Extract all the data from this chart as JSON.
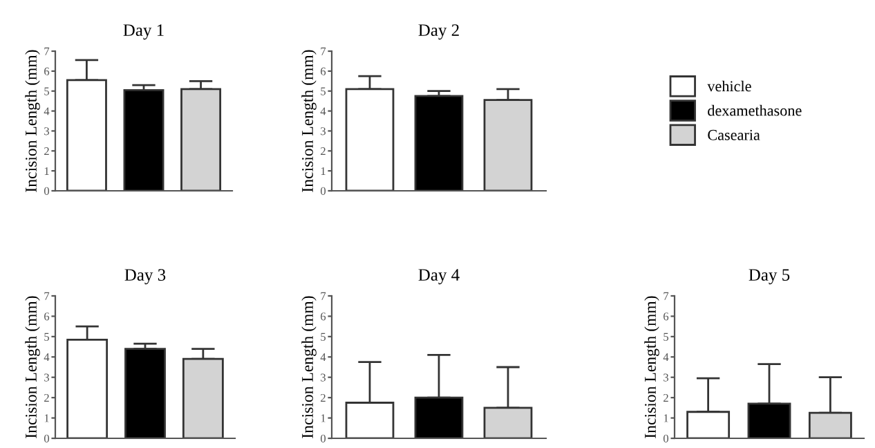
{
  "chart_data": [
    {
      "type": "bar",
      "title": "Day 1",
      "ylabel": "Incision Length (mm)",
      "categories": [
        null,
        null,
        null
      ],
      "ylim": [
        0,
        7
      ],
      "yticks": [
        0,
        1,
        2,
        3,
        4,
        5,
        6,
        7
      ],
      "grid": false,
      "legend": "right",
      "series": [
        {
          "name": "vehicle",
          "color": "#ffffff",
          "values": [
            5.55,
            null,
            null
          ],
          "errors": [
            [
              5.55,
              6.55
            ],
            null,
            null
          ]
        },
        {
          "name": "dexamethasone",
          "color": "#000000",
          "values": [
            null,
            5.05,
            null
          ],
          "errors": [
            null,
            [
              5.05,
              5.3
            ],
            null
          ]
        },
        {
          "name": "Casearia",
          "color": "#d3d3d3",
          "values": [
            null,
            null,
            5.1
          ],
          "errors": [
            null,
            null,
            [
              5.1,
              5.5
            ]
          ]
        }
      ]
    },
    {
      "type": "bar",
      "title": "Day 2",
      "ylabel": "Incision Length (mm)",
      "categories": [
        null,
        null,
        null
      ],
      "ylim": [
        0,
        7
      ],
      "yticks": [
        0,
        1,
        2,
        3,
        4,
        5,
        6,
        7
      ],
      "grid": false,
      "series": [
        {
          "color": "#ffffff",
          "values": [
            5.1,
            null,
            null
          ],
          "errors": [
            [
              5.1,
              5.75
            ],
            null,
            null
          ]
        },
        {
          "color": "#000000",
          "values": [
            null,
            4.75,
            null
          ],
          "errors": [
            null,
            [
              4.75,
              5.0
            ],
            null
          ]
        },
        {
          "color": "#d3d3d3",
          "values": [
            null,
            null,
            4.55
          ],
          "errors": [
            null,
            null,
            [
              4.55,
              5.1
            ]
          ]
        }
      ]
    },
    {
      "type": "bar",
      "title": "Day 3",
      "ylabel": "Incision Length (mm)",
      "categories": [
        null,
        null,
        null
      ],
      "ylim": [
        0,
        7
      ],
      "yticks": [
        0,
        1,
        2,
        3,
        4,
        5,
        6,
        7
      ],
      "grid": false,
      "series": [
        {
          "color": "#ffffff",
          "values": [
            4.85,
            null,
            null
          ],
          "errors": [
            [
              4.85,
              5.5
            ],
            null,
            null
          ]
        },
        {
          "color": "#000000",
          "values": [
            null,
            4.4,
            null
          ],
          "errors": [
            null,
            [
              4.4,
              4.65
            ],
            null
          ]
        },
        {
          "color": "#d3d3d3",
          "values": [
            null,
            null,
            3.9
          ],
          "errors": [
            null,
            null,
            [
              3.9,
              4.4
            ]
          ]
        }
      ]
    },
    {
      "type": "bar",
      "title": "Day 4",
      "ylabel": "Incision Length (mm)",
      "categories": [
        null,
        null,
        null
      ],
      "ylim": [
        0,
        7
      ],
      "yticks": [
        0,
        1,
        2,
        3,
        4,
        5,
        6,
        7
      ],
      "grid": false,
      "series": [
        {
          "color": "#ffffff",
          "values": [
            1.75,
            null,
            null
          ],
          "errors": [
            [
              1.75,
              3.75
            ],
            null,
            null
          ]
        },
        {
          "color": "#000000",
          "values": [
            null,
            2.0,
            null
          ],
          "errors": [
            null,
            [
              2.0,
              4.1
            ],
            null
          ]
        },
        {
          "color": "#d3d3d3",
          "values": [
            null,
            null,
            1.5
          ],
          "errors": [
            null,
            null,
            [
              1.5,
              3.5
            ]
          ]
        }
      ]
    },
    {
      "type": "bar",
      "title": "Day 5",
      "ylabel": "Incision Length (mm)",
      "categories": [
        null,
        null,
        null
      ],
      "ylim": [
        0,
        7
      ],
      "yticks": [
        0,
        1,
        2,
        3,
        4,
        5,
        6,
        7
      ],
      "grid": false,
      "series": [
        {
          "color": "#ffffff",
          "values": [
            1.3,
            null,
            null
          ],
          "errors": [
            [
              1.3,
              2.95
            ],
            null,
            null
          ]
        },
        {
          "color": "#000000",
          "values": [
            null,
            1.7,
            null
          ],
          "errors": [
            null,
            [
              1.7,
              3.65
            ],
            null
          ]
        },
        {
          "color": "#d3d3d3",
          "values": [
            null,
            null,
            1.25
          ],
          "errors": [
            null,
            null,
            [
              1.25,
              3.0
            ]
          ]
        }
      ]
    }
  ]
}
